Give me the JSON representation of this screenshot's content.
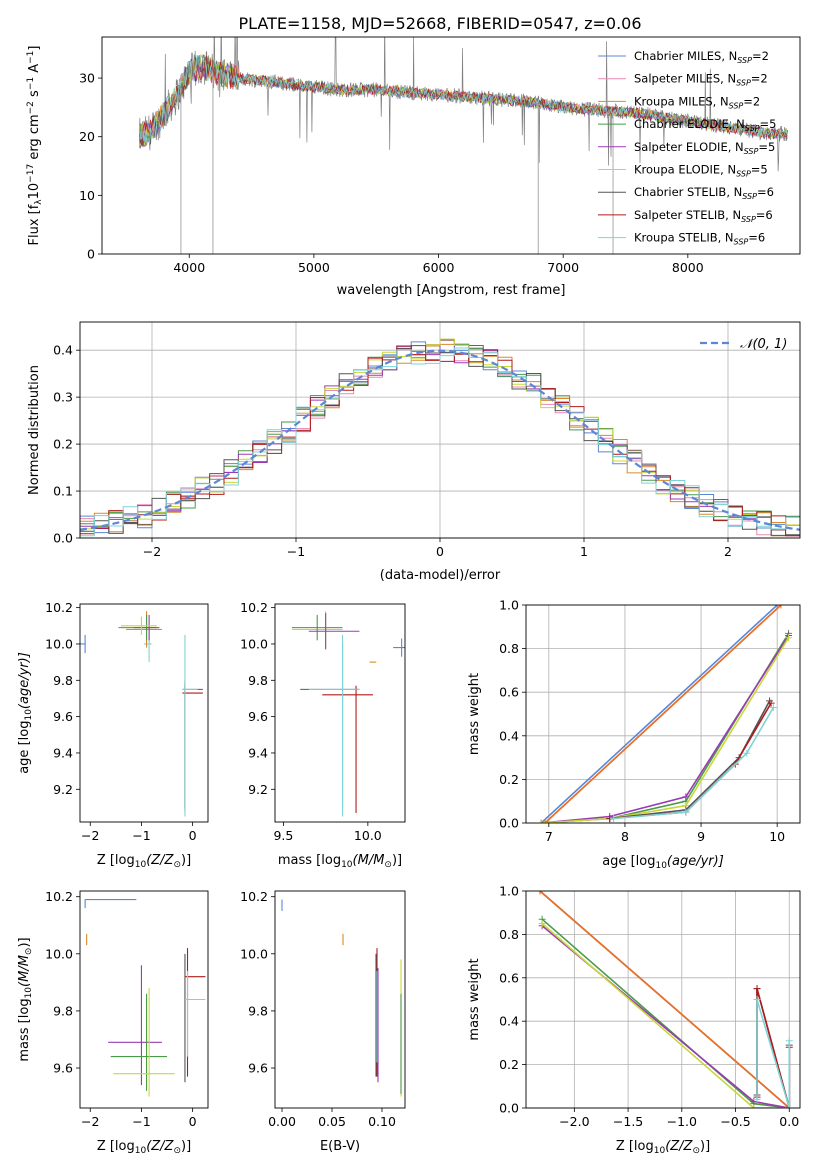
{
  "figure": {
    "title": "PLATE=1158, MJD=52668, FIBERID=0547, z=0.06"
  },
  "colors": {
    "Chabrier MILES": "#5b87d6",
    "Salpeter MILES": "#e888b7",
    "Kroupa MILES": "#d98a2b",
    "Chabrier ELODIE": "#4a9a4a",
    "Salpeter ELODIE": "#9a3bb5",
    "Kroupa ELODIE": "#c8d83a",
    "Chabrier STELIB": "#555555",
    "Salpeter STELIB": "#b01b1b",
    "Kroupa STELIB": "#7fd3d8",
    "data": "#7f7f7f",
    "normal": "#5b87d6",
    "orange": "#e8712a"
  },
  "chart_data": [
    {
      "type": "line",
      "id": "spectrum",
      "xlabel": "wavelength [Angstrom, rest frame]",
      "ylabel_main": "Flux [f",
      "ylabel_sub": "λ",
      "ylabel_mid": "10",
      "ylabel_sup1": "−17",
      "ylabel_rest": " erg cm",
      "ylabel_sup2": "−2",
      "ylabel_s": " s",
      "ylabel_sup3": "−1",
      "ylabel_A": " A",
      "ylabel_sup4": "−1",
      "ylabel_end": "]",
      "xlim": [
        3300,
        8900
      ],
      "ylim": [
        0,
        37
      ],
      "xticks": [
        4000,
        5000,
        6000,
        7000,
        8000
      ],
      "xticklabels": [
        "4000",
        "5000",
        "6000",
        "7000",
        "8000"
      ],
      "yticks": [
        0,
        10,
        20,
        30
      ],
      "yticklabels": [
        "0",
        "10",
        "20",
        "30"
      ],
      "legend_position": "upper right",
      "series": [
        {
          "name": "Chabrier MILES",
          "ssp": "2"
        },
        {
          "name": "Salpeter MILES",
          "ssp": "2"
        },
        {
          "name": "Kroupa MILES",
          "ssp": "2"
        },
        {
          "name": "Chabrier ELODIE",
          "ssp": "5"
        },
        {
          "name": "Salpeter ELODIE",
          "ssp": "5"
        },
        {
          "name": "Kroupa ELODIE",
          "ssp": "5"
        },
        {
          "name": "Chabrier STELIB",
          "ssp": "6"
        },
        {
          "name": "Salpeter STELIB",
          "ssp": "6"
        },
        {
          "name": "Kroupa STELIB",
          "ssp": "6"
        }
      ],
      "continuum": {
        "x": [
          3600,
          3700,
          3800,
          3900,
          4000,
          4100,
          4200,
          4400,
          4600,
          4800,
          5000,
          5200,
          5500,
          5800,
          6100,
          6400,
          6700,
          7000,
          7300,
          7600,
          7900,
          8200,
          8500,
          8700
        ],
        "y": [
          20,
          21,
          24,
          27,
          31,
          32,
          31,
          30,
          29.5,
          29,
          28.5,
          28,
          28,
          27.5,
          27,
          26.5,
          26,
          25,
          24.5,
          24,
          23,
          22,
          21,
          20.5
        ]
      },
      "spikes": [
        {
          "x": 3933,
          "y": 0
        },
        {
          "x": 4190,
          "y": 0
        },
        {
          "x": 6800,
          "y": 0
        },
        {
          "x": 7400,
          "y": 0
        }
      ]
    },
    {
      "type": "bar",
      "id": "residuals",
      "xlabel": "(data-model)/error",
      "ylabel": "Normed distribution",
      "xlim": [
        -2.5,
        2.5
      ],
      "ylim": [
        0,
        0.46
      ],
      "grid": true,
      "xticks": [
        -2,
        -1,
        0,
        1,
        2
      ],
      "xticklabels": [
        "−2",
        "−1",
        "0",
        "1",
        "2"
      ],
      "yticks": [
        0,
        0.1,
        0.2,
        0.3,
        0.4
      ],
      "yticklabels": [
        "0.0",
        "0.1",
        "0.2",
        "0.3",
        "0.4"
      ],
      "legend": "𝒩(0, 1)",
      "bin_width": 0.1
    },
    {
      "type": "scatter",
      "id": "age-vs-z",
      "xlabel": "Z [log",
      "xlabel_sub": "10",
      "xlabel_tail": "(Z/Z",
      "xlabel_sun": "⊙",
      "xlabel_end": ")]",
      "ylabel": "age  [log",
      "ylabel_sub": "10",
      "ylabel_tail": "(age/yr)]",
      "xlim": [
        -2.2,
        0.3
      ],
      "ylim": [
        9.02,
        10.22
      ],
      "xticks": [
        -2,
        -1,
        0
      ],
      "xticklabels": [
        "−2",
        "−1",
        "0"
      ],
      "yticks": [
        9.2,
        9.4,
        9.6,
        9.8,
        10.0,
        10.2
      ],
      "yticklabels": [
        "9.2",
        "9.4",
        "9.6",
        "9.8",
        "10.0",
        "10.2"
      ],
      "points": [
        {
          "series": "Chabrier MILES",
          "x": -2.1,
          "y": 10.0,
          "xerr": [
            0.6,
            0
          ],
          "yerr": [
            0.05,
            0.05
          ]
        },
        {
          "series": "Kroupa STELIB",
          "x": -0.85,
          "y": 10.0,
          "xerr": [
            0.1,
            0.05
          ],
          "yerr": [
            0.1,
            0.1
          ]
        },
        {
          "series": "Kroupa MILES",
          "x": -0.9,
          "y": 10.08,
          "xerr": [
            0.4,
            0.3
          ],
          "yerr": [
            0.1,
            0.1
          ]
        },
        {
          "series": "Chabrier ELODIE",
          "x": -0.9,
          "y": 10.09,
          "xerr": [
            0.55,
            0.2
          ],
          "yerr": [
            0.07,
            0.07
          ]
        },
        {
          "series": "Salpeter ELODIE",
          "x": -0.85,
          "y": 10.09,
          "xerr": [
            0.3,
            0.2
          ],
          "yerr": [
            0.07,
            0.07
          ]
        },
        {
          "series": "Kroupa ELODIE",
          "x": -1.0,
          "y": 10.1,
          "xerr": [
            0.4,
            0.3
          ],
          "yerr": [
            0.05,
            0.05
          ]
        },
        {
          "series": "Salpeter STELIB",
          "x": -0.15,
          "y": 9.73,
          "xerr": [
            0.05,
            0.35
          ],
          "yerr": [
            0.65,
            0.05
          ]
        },
        {
          "series": "Chabrier STELIB",
          "x": -0.15,
          "y": 9.75,
          "xerr": [
            0.05,
            0.35
          ],
          "yerr": [
            0.65,
            0.05
          ]
        },
        {
          "series": "Kroupa STELIB",
          "x": -0.15,
          "y": 9.75,
          "xerr": [
            0.05,
            0.25
          ],
          "yerr": [
            0.7,
            0.3
          ]
        }
      ]
    },
    {
      "type": "scatter",
      "id": "age-vs-mass",
      "xlabel": "mass [log",
      "xlabel_sub": "10",
      "xlabel_tail": "(M/M",
      "xlabel_sun": "⊙",
      "xlabel_end": ")]",
      "xlim": [
        9.45,
        10.22
      ],
      "ylim": [
        9.02,
        10.22
      ],
      "xticks": [
        9.5,
        10.0
      ],
      "xticklabels": [
        "9.5",
        "10.0"
      ],
      "yticks": [
        9.2,
        9.4,
        9.6,
        9.8,
        10.0,
        10.2
      ],
      "yticklabels": [
        "9.2",
        "9.4",
        "9.6",
        "9.8",
        "10.0",
        "10.2"
      ],
      "points": [
        {
          "series": "Chabrier MILES",
          "x": 10.2,
          "y": 9.98,
          "xerr": [
            0.05,
            0.05
          ],
          "yerr": [
            0.05,
            0.05
          ]
        },
        {
          "series": "Kroupa MILES",
          "x": 10.03,
          "y": 9.9,
          "xerr": [
            0.02,
            0.02
          ],
          "yerr": [
            0,
            0
          ]
        },
        {
          "series": "Kroupa ELODIE",
          "x": 9.75,
          "y": 10.08,
          "xerr": [
            0.2,
            0.1
          ],
          "yerr": [
            0.1,
            0.1
          ]
        },
        {
          "series": "Chabrier ELODIE",
          "x": 9.7,
          "y": 10.09,
          "xerr": [
            0.15,
            0.15
          ],
          "yerr": [
            0.07,
            0.07
          ]
        },
        {
          "series": "Salpeter ELODIE",
          "x": 9.75,
          "y": 10.07,
          "xerr": [
            0.1,
            0.2
          ],
          "yerr": [
            0.1,
            0.1
          ]
        },
        {
          "series": "Chabrier STELIB",
          "x": 9.85,
          "y": 9.75,
          "xerr": [
            0.25,
            0.1
          ],
          "yerr": [
            0.65,
            0.25
          ]
        },
        {
          "series": "Salpeter STELIB",
          "x": 9.93,
          "y": 9.72,
          "xerr": [
            0.2,
            0.1
          ],
          "yerr": [
            0.65,
            0.05
          ]
        },
        {
          "series": "Kroupa STELIB",
          "x": 9.85,
          "y": 9.75,
          "xerr": [
            0.2,
            0.1
          ],
          "yerr": [
            0.7,
            0.3
          ]
        }
      ]
    },
    {
      "type": "line",
      "id": "mass-weight-vs-age",
      "xlabel": "age  [log",
      "xlabel_sub": "10",
      "xlabel_tail": "(age/yr)]",
      "ylabel": "mass weight",
      "xlim": [
        6.7,
        10.3
      ],
      "ylim": [
        0,
        1.0
      ],
      "grid": true,
      "xticks": [
        7,
        8,
        9,
        10
      ],
      "xticklabels": [
        "7",
        "8",
        "9",
        "10"
      ],
      "yticks": [
        0,
        0.2,
        0.4,
        0.6,
        0.8,
        1.0
      ],
      "yticklabels": [
        "0.0",
        "0.2",
        "0.4",
        "0.6",
        "0.8",
        "1.0"
      ],
      "series": [
        {
          "name": "Chabrier MILES",
          "x": [
            6.9,
            10.0
          ],
          "y": [
            0.0,
            1.0
          ]
        },
        {
          "name": "Salpeter MILES",
          "x": [
            6.95,
            10.05
          ],
          "y": [
            0.0,
            1.0
          ]
        },
        {
          "name": "Kroupa MILES",
          "x": [
            6.95,
            10.05
          ],
          "y": [
            0.0,
            1.0
          ]
        },
        {
          "name": "Chabrier ELODIE",
          "x": [
            6.9,
            7.8,
            8.8,
            10.15
          ],
          "y": [
            0.0,
            0.02,
            0.1,
            0.87
          ]
        },
        {
          "name": "Salpeter ELODIE",
          "x": [
            6.9,
            7.8,
            8.8,
            10.15
          ],
          "y": [
            0.0,
            0.03,
            0.12,
            0.86
          ]
        },
        {
          "name": "Kroupa ELODIE",
          "x": [
            6.9,
            7.8,
            8.8,
            10.15
          ],
          "y": [
            0.0,
            0.02,
            0.08,
            0.85
          ]
        },
        {
          "name": "Chabrier STELIB",
          "x": [
            7.8,
            8.8,
            9.5,
            9.9
          ],
          "y": [
            0.02,
            0.06,
            0.3,
            0.56
          ]
        },
        {
          "name": "Salpeter STELIB",
          "x": [
            7.8,
            8.8,
            9.45,
            9.92
          ],
          "y": [
            0.02,
            0.05,
            0.27,
            0.55
          ]
        },
        {
          "name": "Kroupa STELIB",
          "x": [
            7.85,
            8.8,
            9.6,
            9.95
          ],
          "y": [
            0.02,
            0.05,
            0.32,
            0.53
          ]
        }
      ]
    },
    {
      "type": "scatter",
      "id": "mass-vs-z",
      "xlabel": "Z [log",
      "xlabel_sub": "10",
      "xlabel_tail": "(Z/Z",
      "xlabel_sun": "⊙",
      "xlabel_end": ")]",
      "ylabel": "mass [log",
      "ylabel_sub": "10",
      "ylabel_tail": "(M/M",
      "ylabel_sun": "⊙",
      "ylabel_end": ")]",
      "xlim": [
        -2.2,
        0.3
      ],
      "ylim": [
        9.46,
        10.22
      ],
      "xticks": [
        -2,
        -1,
        0
      ],
      "xticklabels": [
        "−2",
        "−1",
        "0"
      ],
      "yticks": [
        9.6,
        9.8,
        10.0,
        10.2
      ],
      "yticklabels": [
        "9.6",
        "9.8",
        "10.0",
        "10.2"
      ],
      "points": [
        {
          "series": "Chabrier MILES",
          "x": -2.1,
          "y": 10.19,
          "xerr": [
            0,
            1.0
          ],
          "yerr": [
            0.03,
            0
          ]
        },
        {
          "series": "Kroupa MILES",
          "x": -2.07,
          "y": 10.05,
          "xerr": [
            0,
            0
          ],
          "yerr": [
            0.02,
            0.02
          ]
        },
        {
          "series": "Salpeter ELODIE",
          "x": -1.0,
          "y": 9.69,
          "xerr": [
            0.65,
            0.4
          ],
          "yerr": [
            0.15,
            0.27
          ]
        },
        {
          "series": "Chabrier ELODIE",
          "x": -0.9,
          "y": 9.64,
          "xerr": [
            0.7,
            0.4
          ],
          "yerr": [
            0.12,
            0.22
          ]
        },
        {
          "series": "Kroupa ELODIE",
          "x": -0.85,
          "y": 9.58,
          "xerr": [
            0.7,
            0.5
          ],
          "yerr": [
            0.08,
            0.3
          ]
        },
        {
          "series": "Salpeter STELIB",
          "x": -0.1,
          "y": 9.92,
          "xerr": [
            0.05,
            0.35
          ],
          "yerr": [
            0.35,
            0.1
          ]
        },
        {
          "series": "Chabrier STELIB",
          "x": -0.15,
          "y": 9.9,
          "xerr": [
            0,
            0
          ],
          "yerr": [
            0.35,
            0.1
          ]
        },
        {
          "series": "Kroupa STELIB",
          "x": -0.1,
          "y": 9.84,
          "xerr": [
            0.05,
            0.35
          ],
          "yerr": [
            0.2,
            0.1
          ]
        }
      ]
    },
    {
      "type": "scatter",
      "id": "mass-vs-ebv",
      "xlabel": "E(B-V)",
      "xlim": [
        -0.007,
        0.123
      ],
      "ylim": [
        9.46,
        10.22
      ],
      "xticks": [
        0.0,
        0.05,
        0.1
      ],
      "xticklabels": [
        "0.00",
        "0.05",
        "0.10"
      ],
      "yticks": [
        9.6,
        9.8,
        10.0,
        10.2
      ],
      "yticklabels": [
        "9.6",
        "9.8",
        "10.0",
        "10.2"
      ],
      "points": [
        {
          "series": "Chabrier MILES",
          "x": 0.0,
          "y": 10.17,
          "yerr": [
            0.02,
            0.02
          ]
        },
        {
          "series": "Kroupa MILES",
          "x": 0.061,
          "y": 10.05,
          "yerr": [
            0.02,
            0.02
          ]
        },
        {
          "series": "Salpeter STELIB",
          "x": 0.095,
          "y": 9.92,
          "yerr": [
            0.35,
            0.1
          ]
        },
        {
          "series": "Chabrier STELIB",
          "x": 0.094,
          "y": 9.9,
          "yerr": [
            0.33,
            0.1
          ]
        },
        {
          "series": "Kroupa STELIB",
          "x": 0.095,
          "y": 9.84,
          "yerr": [
            0.22,
            0.1
          ]
        },
        {
          "series": "Salpeter ELODIE",
          "x": 0.096,
          "y": 9.7,
          "yerr": [
            0.15,
            0.25
          ]
        },
        {
          "series": "Kroupa ELODIE",
          "x": 0.119,
          "y": 9.68,
          "yerr": [
            0.18,
            0.3
          ]
        },
        {
          "series": "Chabrier ELODIE",
          "x": 0.119,
          "y": 9.64,
          "yerr": [
            0.13,
            0.22
          ]
        }
      ]
    },
    {
      "type": "line",
      "id": "mass-weight-vs-z",
      "xlabel": "Z [log",
      "xlabel_sub": "10",
      "xlabel_tail": "(Z/Z",
      "xlabel_sun": "⊙",
      "xlabel_end": ")]",
      "ylabel": "mass weight",
      "xlim": [
        -2.45,
        0.1
      ],
      "ylim": [
        0,
        1.0
      ],
      "grid": true,
      "xticks": [
        -2.0,
        -1.5,
        -1.0,
        -0.5,
        0.0
      ],
      "xticklabels": [
        "−2.0",
        "−1.5",
        "−1.0",
        "−0.5",
        "0.0"
      ],
      "yticks": [
        0,
        0.2,
        0.4,
        0.6,
        0.8,
        1.0
      ],
      "yticklabels": [
        "0.0",
        "0.2",
        "0.4",
        "0.6",
        "0.8",
        "1.0"
      ],
      "series": [
        {
          "name": "Chabrier MILES",
          "x": [
            -2.32,
            0.0
          ],
          "y": [
            1.0,
            0.0
          ]
        },
        {
          "name": "Salpeter MILES",
          "x": [
            -2.32,
            0.0
          ],
          "y": [
            1.0,
            0.0
          ]
        },
        {
          "name": "Kroupa MILES",
          "x": [
            -2.32,
            0.0
          ],
          "y": [
            1.0,
            0.0
          ]
        },
        {
          "name": "Chabrier ELODIE",
          "x": [
            -2.3,
            -0.33,
            0.0
          ],
          "y": [
            0.87,
            0.02,
            0.0
          ]
        },
        {
          "name": "Salpeter ELODIE",
          "x": [
            -2.3,
            -0.33,
            0.0
          ],
          "y": [
            0.84,
            0.03,
            0.0
          ]
        },
        {
          "name": "Kroupa ELODIE",
          "x": [
            -2.3,
            -0.33,
            0.0
          ],
          "y": [
            0.85,
            0.0,
            0.0
          ]
        },
        {
          "name": "Chabrier STELIB",
          "x": [
            -0.3,
            -0.3,
            0.0,
            0.0
          ],
          "y": [
            0.06,
            0.55,
            0.0,
            0.29
          ]
        },
        {
          "name": "Salpeter STELIB",
          "x": [
            -0.3,
            -0.3,
            0.0,
            0.0
          ],
          "y": [
            0.05,
            0.55,
            0.0,
            0.28
          ]
        },
        {
          "name": "Kroupa STELIB",
          "x": [
            -0.3,
            -0.3,
            0.0,
            0.0
          ],
          "y": [
            0.04,
            0.5,
            0.0,
            0.31
          ]
        }
      ]
    }
  ]
}
